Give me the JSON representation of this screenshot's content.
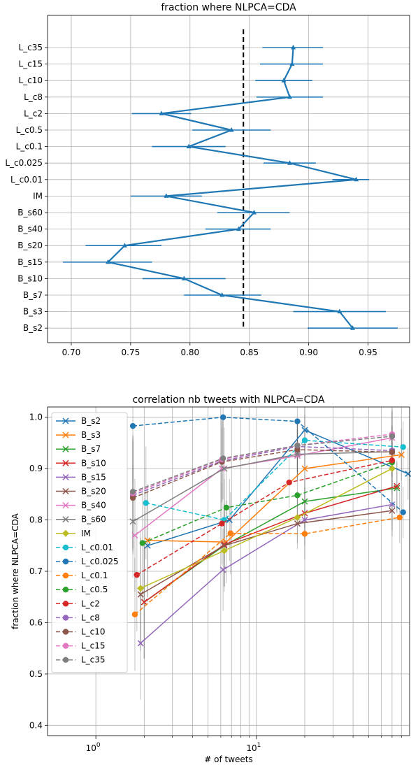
{
  "chart_data": [
    {
      "type": "line",
      "title": "fraction where NLPCA=CDA",
      "xlabel": "",
      "ylabel": "",
      "xlim": [
        0.68,
        0.985
      ],
      "xticks": [
        0.7,
        0.75,
        0.8,
        0.85,
        0.9,
        0.95
      ],
      "xtick_labels": [
        "0.70",
        "0.75",
        "0.80",
        "0.85",
        "0.90",
        "0.95"
      ],
      "grid": true,
      "reference_line": 0.845,
      "color": "#1f77b4",
      "categories": [
        "L_c35",
        "L_c15",
        "L_c10",
        "L_c8",
        "L_c2",
        "L_c0.5",
        "L_c0.1",
        "L_c0.025",
        "L_c0.01",
        "IM",
        "B_s60",
        "B_s40",
        "B_s20",
        "B_s15",
        "B_s10",
        "B_s7",
        "B_s3",
        "B_s2"
      ],
      "values": [
        0.887,
        0.886,
        0.879,
        0.884,
        0.776,
        0.835,
        0.799,
        0.884,
        0.94,
        0.78,
        0.854,
        0.841,
        0.745,
        0.731,
        0.795,
        0.827,
        0.926,
        0.937
      ],
      "err_low": [
        0.861,
        0.859,
        0.855,
        0.856,
        0.751,
        0.802,
        0.768,
        0.862,
        0.92,
        0.75,
        0.823,
        0.813,
        0.712,
        0.693,
        0.76,
        0.795,
        0.887,
        0.899
      ],
      "err_high": [
        0.912,
        0.912,
        0.903,
        0.912,
        0.801,
        0.868,
        0.83,
        0.906,
        0.951,
        0.81,
        0.884,
        0.868,
        0.776,
        0.768,
        0.83,
        0.86,
        0.965,
        0.975
      ]
    },
    {
      "type": "line",
      "title": "correlation nb tweets with NLPCA=CDA",
      "xlabel": "# of tweets",
      "ylabel": "fraction where NLPCA=CDA",
      "xscale": "log",
      "xlim": [
        0.5,
        90
      ],
      "ylim": [
        0.38,
        1.02
      ],
      "xticks": [
        1,
        10
      ],
      "xtick_labels": [
        "10^0",
        "10^1"
      ],
      "yticks": [
        0.4,
        0.5,
        0.6,
        0.7,
        0.8,
        0.9,
        1.0
      ],
      "ytick_labels": [
        "0.4",
        "0.5",
        "0.6",
        "0.7",
        "0.8",
        "0.9",
        "1.0"
      ],
      "grid": true,
      "legend_position": "upper-left",
      "series": [
        {
          "name": "B_s2",
          "color": "#1f77b4",
          "marker": "x",
          "dash": false,
          "x": [
            2.1,
            6.8,
            20,
            88
          ],
          "y": [
            0.75,
            0.8,
            0.975,
            0.89
          ]
        },
        {
          "name": "B_s3",
          "color": "#ff7f0e",
          "marker": "x",
          "dash": false,
          "x": [
            2.1,
            6.5,
            20,
            80
          ],
          "y": [
            0.76,
            0.757,
            0.9,
            0.927
          ]
        },
        {
          "name": "B_s7",
          "color": "#2ca02c",
          "marker": "x",
          "dash": false,
          "x": [
            2.0,
            6.3,
            20,
            75
          ],
          "y": [
            0.64,
            0.75,
            0.836,
            0.862
          ]
        },
        {
          "name": "B_s10",
          "color": "#d62728",
          "marker": "x",
          "dash": false,
          "x": [
            2.0,
            6.3,
            20,
            75
          ],
          "y": [
            0.64,
            0.752,
            0.813,
            0.866
          ]
        },
        {
          "name": "B_s15",
          "color": "#9467bd",
          "marker": "x",
          "dash": false,
          "x": [
            1.9,
            6.2,
            20,
            70
          ],
          "y": [
            0.56,
            0.703,
            0.8,
            0.83
          ]
        },
        {
          "name": "B_s20",
          "color": "#8c564b",
          "marker": "x",
          "dash": false,
          "x": [
            1.9,
            6.3,
            18,
            70
          ],
          "y": [
            0.655,
            0.75,
            0.793,
            0.818
          ]
        },
        {
          "name": "B_s40",
          "color": "#e377c2",
          "marker": "x",
          "dash": false,
          "x": [
            1.75,
            6.1,
            18,
            70
          ],
          "y": [
            0.77,
            0.9,
            0.925,
            0.96
          ]
        },
        {
          "name": "B_s60",
          "color": "#7f7f7f",
          "marker": "x",
          "dash": false,
          "x": [
            1.7,
            6.3,
            18,
            70
          ],
          "y": [
            0.797,
            0.9,
            0.928,
            0.933
          ]
        },
        {
          "name": "IM",
          "color": "#bcbd22",
          "marker": "D",
          "dash": false,
          "x": [
            1.9,
            6.3,
            18,
            70
          ],
          "y": [
            0.667,
            0.74,
            0.805,
            0.9
          ]
        },
        {
          "name": "L_c0.01",
          "color": "#17becf",
          "marker": "o",
          "dash": true,
          "x": [
            2.05,
            6.3,
            20,
            82
          ],
          "y": [
            0.833,
            0.8,
            0.955,
            0.942
          ]
        },
        {
          "name": "L_c0.025",
          "color": "#1f77b4",
          "marker": "o",
          "dash": true,
          "x": [
            1.7,
            6.2,
            18,
            82
          ],
          "y": [
            0.983,
            1.0,
            0.992,
            0.815
          ]
        },
        {
          "name": "L_c0.1",
          "color": "#ff7f0e",
          "marker": "o",
          "dash": true,
          "x": [
            1.75,
            6.9,
            20,
            78
          ],
          "y": [
            0.616,
            0.774,
            0.773,
            0.805
          ]
        },
        {
          "name": "L_c0.5",
          "color": "#2ca02c",
          "marker": "o",
          "dash": true,
          "x": [
            1.95,
            6.5,
            18,
            70
          ],
          "y": [
            0.755,
            0.824,
            0.848,
            0.912
          ]
        },
        {
          "name": "L_c2",
          "color": "#d62728",
          "marker": "o",
          "dash": true,
          "x": [
            1.8,
            6.1,
            16,
            70
          ],
          "y": [
            0.693,
            0.793,
            0.873,
            0.916
          ]
        },
        {
          "name": "L_c8",
          "color": "#9467bd",
          "marker": "o",
          "dash": true,
          "x": [
            1.7,
            6.1,
            18,
            70
          ],
          "y": [
            0.848,
            0.915,
            0.943,
            0.935
          ]
        },
        {
          "name": "L_c10",
          "color": "#8c564b",
          "marker": "o",
          "dash": true,
          "x": [
            1.7,
            6.1,
            18,
            70
          ],
          "y": [
            0.843,
            0.913,
            0.937,
            0.932
          ]
        },
        {
          "name": "L_c15",
          "color": "#e377c2",
          "marker": "o",
          "dash": true,
          "x": [
            1.7,
            6.1,
            18,
            70
          ],
          "y": [
            0.852,
            0.918,
            0.945,
            0.967
          ]
        },
        {
          "name": "L_c35",
          "color": "#7f7f7f",
          "marker": "o",
          "dash": true,
          "x": [
            1.7,
            6.2,
            18,
            70
          ],
          "y": [
            0.855,
            0.92,
            0.945,
            0.963
          ]
        }
      ]
    }
  ]
}
